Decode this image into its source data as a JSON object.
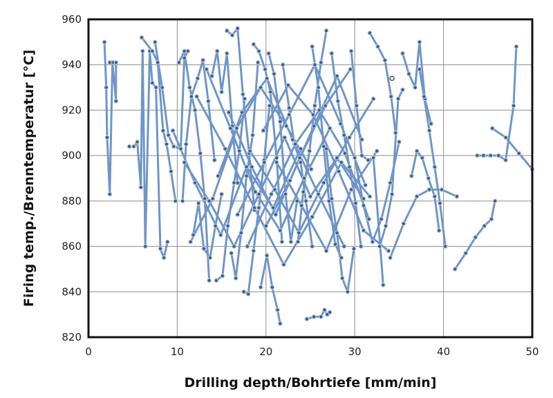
{
  "chart_data": {
    "type": "line",
    "title": "",
    "xlabel": "Drilling depth/Bohrtiefe [mm/min]",
    "ylabel": "Firing temp./Brenntemperatur [°C]",
    "xlim": [
      0,
      50
    ],
    "ylim": [
      820,
      960
    ],
    "x_ticks": [
      0,
      10,
      20,
      30,
      40,
      50
    ],
    "y_ticks": [
      820,
      840,
      860,
      880,
      900,
      920,
      940,
      960
    ],
    "grid": true,
    "legend": "none",
    "colors": {
      "line": "#6f95c7",
      "marker": "#3f5f87"
    },
    "series": [
      {
        "x": [
          1.8,
          2.0,
          2.1,
          2.4,
          2.7,
          3.1,
          3.1,
          2.7,
          2.4
        ],
        "y": [
          950,
          930,
          908,
          883,
          941,
          924,
          941,
          941,
          941
        ]
      },
      {
        "x": [
          4.6,
          5.1,
          5.5,
          5.9,
          6.1,
          6.4,
          6.9,
          7.2,
          7.6,
          8.1,
          8.5,
          8.9
        ],
        "y": [
          904,
          904,
          906,
          886,
          946,
          860,
          946,
          932,
          930,
          859,
          855,
          862
        ]
      },
      {
        "x": [
          6.0,
          7.2,
          7.8,
          8.4,
          8.8,
          9.3,
          9.8
        ],
        "y": [
          952,
          946,
          941,
          911,
          905,
          893,
          880
        ]
      },
      {
        "x": [
          7.5,
          8.3,
          9.0,
          9.6,
          10.4,
          10.8,
          11.2
        ],
        "y": [
          950,
          930,
          909,
          904,
          903,
          943,
          946
        ]
      },
      {
        "x": [
          10.2,
          10.8,
          11.4,
          12.0,
          12.6,
          13.1,
          13.6
        ],
        "y": [
          941,
          946,
          930,
          920,
          901,
          881,
          845
        ]
      },
      {
        "x": [
          10.6,
          11.0,
          11.6,
          12.3,
          12.9,
          13.5,
          14.2
        ],
        "y": [
          880,
          905,
          926,
          934,
          942,
          924,
          898
        ]
      },
      {
        "x": [
          11.8,
          12.4,
          13.0,
          13.7,
          14.3,
          15.0
        ],
        "y": [
          865,
          879,
          859,
          855,
          869,
          883
        ]
      },
      {
        "x": [
          13.9,
          14.5,
          15.0,
          15.6,
          16.2,
          16.8
        ],
        "y": [
          935,
          946,
          928,
          945,
          913,
          888
        ]
      },
      {
        "x": [
          14.4,
          15.1,
          15.7,
          16.4,
          17.0,
          17.6
        ],
        "y": [
          845,
          847,
          869,
          888,
          902,
          925
        ]
      },
      {
        "x": [
          15.6,
          16.2,
          16.8,
          17.4,
          18.1,
          18.7
        ],
        "y": [
          955,
          953,
          956,
          927,
          901,
          876
        ]
      },
      {
        "x": [
          16.1,
          16.6,
          17.2,
          17.8,
          18.5,
          19.1
        ],
        "y": [
          857,
          846,
          866,
          891,
          909,
          941
        ]
      },
      {
        "x": [
          17.5,
          18.0,
          18.6,
          19.2,
          19.8,
          20.4
        ],
        "y": [
          840,
          839,
          858,
          877,
          898,
          922
        ]
      },
      {
        "x": [
          18.6,
          19.2,
          19.9,
          20.5,
          21.2,
          21.8
        ],
        "y": [
          949,
          946,
          938,
          928,
          899,
          862
        ]
      },
      {
        "x": [
          19.4,
          20.1,
          20.7,
          21.3,
          21.6
        ],
        "y": [
          842,
          856,
          842,
          832,
          826
        ]
      },
      {
        "x": [
          20.3,
          20.9,
          21.6,
          22.2,
          22.8,
          23.5
        ],
        "y": [
          945,
          936,
          915,
          883,
          862,
          880
        ]
      },
      {
        "x": [
          21.9,
          22.6,
          23.2,
          23.9,
          24.5,
          25.2
        ],
        "y": [
          940,
          921,
          905,
          897,
          880,
          860
        ]
      },
      {
        "x": [
          23.6,
          24.2,
          24.9,
          25.5,
          26.2,
          26.8
        ],
        "y": [
          862,
          884,
          902,
          922,
          941,
          955
        ]
      },
      {
        "x": [
          24.6,
          25.4,
          26.2,
          26.6,
          26.9,
          27.2
        ],
        "y": [
          828,
          829,
          829,
          832,
          830,
          831
        ]
      },
      {
        "x": [
          25.2,
          25.9,
          26.5,
          27.1,
          27.8,
          28.5
        ],
        "y": [
          948,
          930,
          904,
          880,
          861,
          855
        ]
      },
      {
        "x": [
          26.8,
          27.4,
          28.0,
          28.6,
          29.2,
          29.9
        ],
        "y": [
          903,
          881,
          866,
          846,
          840,
          859
        ]
      },
      {
        "x": [
          27.4,
          28.1,
          28.8,
          29.4,
          30.1,
          30.7
        ],
        "y": [
          945,
          924,
          909,
          895,
          879,
          860
        ]
      },
      {
        "x": [
          29.6,
          30.2,
          30.8,
          31.5,
          32.1,
          33.2
        ],
        "y": [
          946,
          922,
          900,
          898,
          899,
          843
        ]
      },
      {
        "x": [
          30.0,
          31.0,
          32.0,
          33.0,
          34.0,
          35.0
        ],
        "y": [
          899,
          878,
          862,
          872,
          888,
          906
        ]
      },
      {
        "x": [
          31.7,
          32.6,
          33.4,
          34.1,
          34.6
        ],
        "y": [
          954,
          948,
          942,
          926,
          910
        ]
      },
      {
        "x": [
          32.8,
          33.5,
          34.2,
          34.9,
          35.4
        ],
        "y": [
          860,
          869,
          883,
          925,
          929
        ]
      },
      {
        "x": [
          34.0,
          35.5,
          37.0,
          38.4,
          39.8,
          41.5
        ],
        "y": [
          855,
          870,
          882,
          885,
          885,
          882
        ]
      },
      {
        "x": [
          35.4,
          36.1,
          36.8,
          37.3,
          37.9,
          38.6
        ],
        "y": [
          945,
          936,
          930,
          950,
          925,
          914
        ]
      },
      {
        "x": [
          36.4,
          37.0,
          37.6,
          38.3,
          39.0,
          39.5
        ],
        "y": [
          891,
          902,
          899,
          890,
          882,
          867
        ]
      },
      {
        "x": [
          37.3,
          37.8,
          38.4,
          39.0,
          39.6,
          40.2
        ],
        "y": [
          938,
          926,
          911,
          895,
          879,
          860
        ]
      },
      {
        "x": [
          41.3,
          42.5,
          43.6,
          44.6,
          45.4,
          45.8
        ],
        "y": [
          850,
          857,
          864,
          869,
          872,
          880
        ]
      },
      {
        "x": [
          43.8,
          44.5,
          45.3,
          46.2,
          47.0,
          47.9,
          48.2
        ],
        "y": [
          900,
          900,
          900,
          900,
          898,
          922,
          948
        ]
      },
      {
        "x": [
          45.5,
          47.0,
          48.5,
          50.0
        ],
        "y": [
          912,
          908,
          901,
          894
        ]
      },
      {
        "x": [
          10.8,
          13.6,
          16.4,
          19.2,
          22.1,
          25.0,
          28.0,
          31.0
        ],
        "y": [
          897,
          880,
          860,
          883,
          908,
          882,
          899,
          881
        ]
      },
      {
        "x": [
          12.2,
          15.4,
          18.7,
          22.0,
          25.2,
          28.5,
          31.7
        ],
        "y": [
          926,
          903,
          877,
          852,
          873,
          897,
          882
        ]
      },
      {
        "x": [
          14.6,
          17.3,
          20.1,
          23.0,
          25.9,
          28.8
        ],
        "y": [
          891,
          919,
          934,
          907,
          883,
          860
        ]
      },
      {
        "x": [
          16.8,
          19.8,
          22.6,
          25.5,
          28.4,
          31.2
        ],
        "y": [
          874,
          897,
          918,
          940,
          914,
          887
        ]
      },
      {
        "x": [
          18.2,
          21.0,
          23.7,
          26.5,
          29.4,
          32.1
        ],
        "y": [
          902,
          885,
          866,
          888,
          908,
          925
        ]
      },
      {
        "x": [
          20.0,
          22.7,
          25.4,
          28.0,
          30.8
        ],
        "y": [
          869,
          889,
          913,
          935,
          907
        ]
      },
      {
        "x": [
          11.5,
          14.0,
          16.7,
          19.4,
          22.3,
          25.1
        ],
        "y": [
          862,
          881,
          912,
          930,
          913,
          894
        ]
      },
      {
        "x": [
          13.3,
          16.0,
          18.8,
          21.6,
          24.3,
          27.2
        ],
        "y": [
          938,
          912,
          884,
          867,
          890,
          912
        ]
      },
      {
        "x": [
          15.8,
          18.4,
          21.1,
          23.8,
          26.7,
          29.5
        ],
        "y": [
          919,
          895,
          874,
          899,
          922,
          938
        ]
      },
      {
        "x": [
          17.9,
          20.6,
          23.3,
          26.0,
          28.9,
          31.6
        ],
        "y": [
          860,
          883,
          905,
          920,
          901,
          872
        ]
      },
      {
        "x": [
          19.7,
          22.5,
          25.3,
          28.2,
          31.0,
          33.8
        ],
        "y": [
          911,
          931,
          918,
          893,
          867,
          858
        ]
      },
      {
        "x": [
          9.5,
          12.0,
          14.9,
          17.8,
          20.8,
          23.9
        ],
        "y": [
          911,
          888,
          865,
          895,
          877,
          903
        ]
      },
      {
        "x": [
          21.2,
          24.0,
          26.8,
          29.6,
          32.5
        ],
        "y": [
          897,
          878,
          858,
          885,
          902
        ]
      }
    ],
    "annotations": [
      {
        "x": 34.2,
        "y": 934,
        "marker": "hollow-circle"
      }
    ]
  }
}
